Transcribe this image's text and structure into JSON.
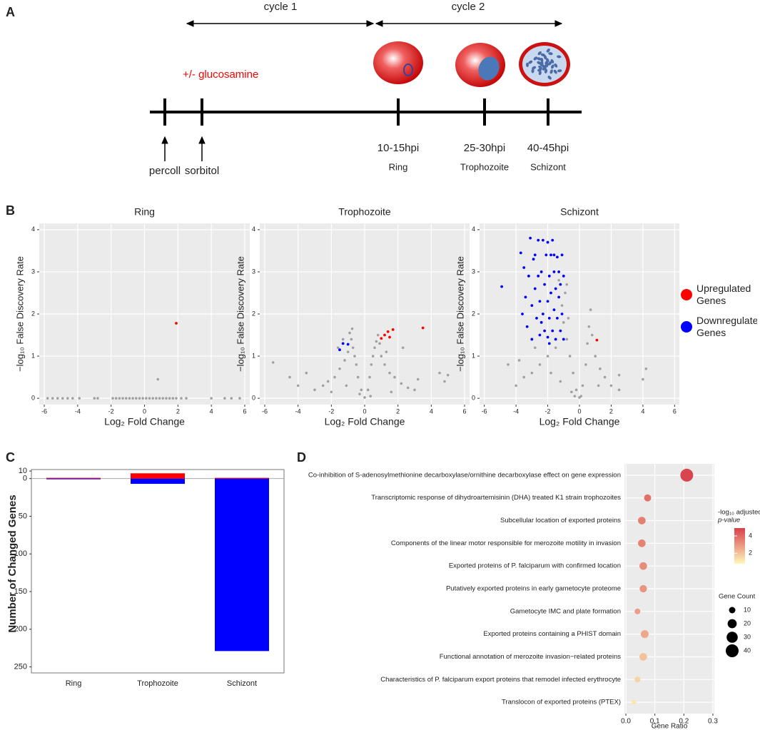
{
  "panel_labels": [
    "A",
    "B",
    "C",
    "D"
  ],
  "timeline": {
    "cycles": [
      "cycle 1",
      "cycle 2"
    ],
    "treatment": "+/- glucosamine",
    "steps": [
      "percoll",
      "sorbitol"
    ],
    "stages": [
      {
        "time": "10-15hpi",
        "name": "Ring"
      },
      {
        "time": "25-30hpi",
        "name": "Trophozoite"
      },
      {
        "time": "40-45hpi",
        "name": "Schizont"
      }
    ]
  },
  "legend": [
    {
      "name": "Upregulated Genes",
      "color": "#ff0000"
    },
    {
      "name": "Downregulated Genes",
      "color": "#0000ff"
    }
  ],
  "chart_data": [
    {
      "type": "scatter",
      "title": "Ring",
      "xlabel": "Log₂ Fold Change",
      "ylabel": "−log₁₀ False Discovery Rate",
      "xlim": [
        -6.3,
        6.3
      ],
      "xticks": [
        -6,
        -4,
        -2,
        0,
        2,
        4,
        6
      ],
      "ylim": [
        -0.15,
        4.15
      ],
      "yticks": [
        0,
        1,
        2,
        3,
        4
      ],
      "grid": true,
      "series": {
        "other": {
          "color": "#a0a0a0",
          "x": [
            -5.8,
            -5.5,
            -5.2,
            -4.9,
            -4.6,
            -4.3,
            -3.9,
            -3.0,
            -2.8,
            -1.9,
            -1.7,
            -1.5,
            -1.3,
            -1.1,
            -0.9,
            -0.7,
            -0.5,
            -0.3,
            -0.1,
            0.1,
            0.3,
            0.5,
            0.7,
            0.9,
            1.1,
            1.3,
            1.5,
            1.7,
            1.9,
            2.2,
            2.5,
            4.0,
            4.8,
            5.2,
            5.7,
            0.8
          ],
          "y": [
            0,
            0,
            0,
            0,
            0,
            0,
            0,
            0,
            0,
            0,
            0,
            0,
            0,
            0,
            0,
            0,
            0,
            0,
            0,
            0,
            0,
            0,
            0,
            0,
            0,
            0,
            0,
            0,
            0,
            0,
            0,
            0,
            0,
            0,
            0,
            0.45
          ]
        },
        "down": {
          "x": [],
          "y": []
        },
        "up": {
          "x": [
            1.9
          ],
          "y": [
            1.78
          ]
        }
      }
    },
    {
      "type": "scatter",
      "title": "Trophozoite",
      "xlabel": "Log₂ Fold Change",
      "ylabel": "−log₁₀ False Discovery Rate",
      "xlim": [
        -6.3,
        6.3
      ],
      "xticks": [
        -6,
        -4,
        -2,
        0,
        2,
        4,
        6
      ],
      "ylim": [
        -0.15,
        4.15
      ],
      "yticks": [
        0,
        1,
        2,
        3,
        4
      ],
      "grid": true,
      "series": {
        "other": {
          "color": "#a0a0a0",
          "x": [
            -0.2,
            -0.4,
            -0.5,
            -0.6,
            -0.7,
            -0.8,
            -0.9,
            -0.75,
            -1.0,
            -1.2,
            -1.5,
            -1.8,
            -2.2,
            -2.5,
            -3.0,
            -1.6,
            -1.3,
            -0.3,
            -1.1,
            -2.0,
            -5.5,
            -4.5,
            -4.0,
            -3.5,
            0.2,
            0.3,
            0.4,
            0.5,
            0.6,
            0.7,
            0.8,
            0.9,
            1.0,
            1.2,
            1.5,
            1.8,
            2.2,
            2.6,
            3.0,
            1.3,
            0.35,
            1.6,
            2.3,
            3.2,
            4.5,
            5.0,
            4.8,
            0
          ],
          "y": [
            0.2,
            0.5,
            0.8,
            1.0,
            1.2,
            1.4,
            1.55,
            1.65,
            1.1,
            0.9,
            0.7,
            0.5,
            0.4,
            0.3,
            0.2,
            1.2,
            1.4,
            0.1,
            0.3,
            0.15,
            0.85,
            0.5,
            0.3,
            0.6,
            0.2,
            0.5,
            0.8,
            1.0,
            1.2,
            1.35,
            1.5,
            1.3,
            1.0,
            0.8,
            0.6,
            0.5,
            0.35,
            0.25,
            0.2,
            1.1,
            0.05,
            0.15,
            1.2,
            0.45,
            0.6,
            0.55,
            0.4,
            0.02
          ]
        },
        "down": {
          "x": [
            -1.0,
            -1.3,
            -1.5
          ],
          "y": [
            1.28,
            1.3,
            1.15
          ]
        },
        "up": {
          "x": [
            1.0,
            1.2,
            1.4,
            1.7,
            1.5,
            3.5
          ],
          "y": [
            1.42,
            1.5,
            1.58,
            1.63,
            1.45,
            1.67
          ]
        }
      }
    },
    {
      "type": "scatter",
      "title": "Schizont",
      "xlabel": "Log₂ Fold Change",
      "ylabel": "−log₁₀ False Discovery Rate",
      "xlim": [
        -6.3,
        6.3
      ],
      "xticks": [
        -6,
        -4,
        -2,
        0,
        2,
        4,
        6
      ],
      "ylim": [
        -0.15,
        4.15
      ],
      "yticks": [
        0,
        1,
        2,
        3,
        4
      ],
      "grid": true,
      "series": {
        "other": {
          "color": "#a0a0a0",
          "x": [
            -0.2,
            -0.4,
            -0.6,
            -0.8,
            -1.0,
            -1.1,
            -0.9,
            -0.8,
            -1.5,
            -2.0,
            -2.5,
            -3.0,
            -3.5,
            -4.0,
            -2.8,
            -1.8,
            -1.2,
            -0.5,
            -3.8,
            -4.5,
            -1.3,
            -0.7,
            0.2,
            0.4,
            0.5,
            0.6,
            0.7,
            0.8,
            1.0,
            1.3,
            1.6,
            2.0,
            2.5,
            1.2,
            4.2,
            4.0,
            2.5,
            0,
            -0.3,
            0.1
          ],
          "y": [
            0.2,
            0.6,
            1.0,
            1.4,
            1.8,
            2.2,
            2.5,
            2.7,
            1.2,
            1.0,
            0.8,
            0.6,
            0.5,
            0.3,
            1.2,
            0.6,
            0.4,
            0.15,
            0.9,
            0.8,
            2.8,
            1.9,
            0.3,
            0.8,
            1.3,
            1.7,
            2.1,
            1.5,
            1.0,
            0.7,
            0.5,
            0.3,
            0.2,
            0.3,
            0.7,
            0.45,
            0.55,
            0.02,
            0.05,
            0.05
          ]
        },
        "down": {
          "x": [
            -4.9,
            -3.7,
            -3.5,
            -3.4,
            -3.3,
            -3.2,
            -3.1,
            -3.0,
            -3.0,
            -2.9,
            -2.8,
            -2.7,
            -2.6,
            -2.6,
            -2.5,
            -2.5,
            -2.4,
            -2.3,
            -2.3,
            -2.2,
            -2.2,
            -2.1,
            -2.0,
            -2.0,
            -2.0,
            -1.9,
            -1.9,
            -1.8,
            -1.8,
            -1.7,
            -1.7,
            -1.6,
            -1.6,
            -1.5,
            -1.5,
            -1.4,
            -1.4,
            -1.3,
            -1.3,
            -1.2,
            -1.2,
            -1.1,
            -1.1,
            -1.0,
            -1.0,
            -1.6,
            -2.4,
            -2.8,
            -1.9,
            -3.6
          ],
          "y": [
            2.65,
            3.45,
            3.1,
            2.4,
            1.7,
            2.9,
            3.8,
            2.2,
            1.4,
            3.3,
            2.6,
            1.9,
            3.75,
            2.9,
            1.5,
            2.3,
            3.0,
            3.75,
            2.0,
            1.6,
            2.7,
            3.4,
            3.7,
            2.3,
            1.45,
            2.9,
            1.9,
            3.4,
            2.5,
            1.6,
            3.75,
            2.1,
            3.0,
            2.6,
            1.4,
            3.35,
            1.9,
            2.4,
            3.0,
            1.6,
            2.7,
            3.4,
            2.0,
            2.9,
            1.4,
            3.4,
            1.8,
            3.4,
            1.3,
            2.0
          ]
        },
        "up": {
          "x": [
            1.1
          ],
          "y": [
            1.38
          ]
        }
      }
    },
    {
      "type": "bar",
      "ylabel": "Number of Changed Genes",
      "categories": [
        "Ring",
        "Trophozoite",
        "Schizont"
      ],
      "ylim": [
        -258,
        12
      ],
      "yticks": [
        10,
        0,
        {
          "value": -50,
          "label": "50"
        },
        {
          "value": -100,
          "label": "100"
        },
        {
          "value": -150,
          "label": "150"
        },
        {
          "value": -200,
          "label": "200"
        },
        {
          "value": -250,
          "label": "250"
        }
      ],
      "up_values": [
        1,
        7,
        1
      ],
      "down_values": [
        0,
        -7,
        -229
      ]
    },
    {
      "type": "dot",
      "xlabel": "Gene Ratio",
      "categories": [
        "Co-inhibition of S-adenosylmethionine decarboxylase/ornithine decarboxylase effect on gene expression",
        "Transcriptomic response of dihydroartemisinin (DHA) treated K1 strain trophozoites",
        "Subcellular location of exported proteins",
        "Components of the linear motor responsible for merozoite motility in invasion",
        "Exported proteins of P. falciparum with confirmed location",
        "Putatively exported proteins in early gametocyte proteome",
        "Gametocyte IMC and plate formation",
        "Exported proteins containing a PHIST domain",
        "Functional annotation of merozoite invasion−related proteins",
        "Characteristics of P. falciparum export proteins that remodel infected erythrocyte",
        "Translocon of exported proteins (PTEX)"
      ],
      "values": [
        0.21,
        0.075,
        0.055,
        0.055,
        0.06,
        0.06,
        0.04,
        0.065,
        0.06,
        0.04,
        0.028
      ],
      "color_values": [
        4.8,
        3.8,
        3.5,
        3.4,
        3.2,
        3.0,
        2.8,
        2.6,
        2.0,
        1.6,
        1.2
      ],
      "size_values": [
        40,
        12,
        14,
        14,
        14,
        13,
        8,
        15,
        14,
        8,
        5
      ],
      "xlim": [
        -0.005,
        0.305
      ],
      "xticks": [
        {
          "value": 0,
          "label": "0.0"
        },
        0.1,
        0.2,
        0.3
      ],
      "grid": true,
      "color_scale": {
        "title_lines": [
          "-log₁₀ adjusted",
          "p-value"
        ],
        "lim": [
          0.8,
          4.9
        ],
        "ticks": [
          2,
          4
        ],
        "colors": [
          "#fff7bc",
          "#d7414b"
        ]
      },
      "size_scale": {
        "title": "Gene Count",
        "values": [
          10,
          20,
          30,
          40
        ]
      }
    }
  ]
}
